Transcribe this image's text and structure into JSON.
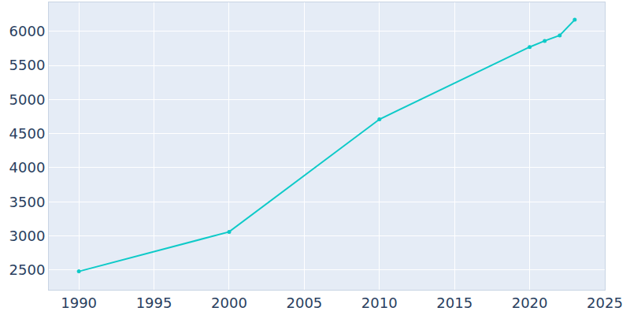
{
  "chart_data": {
    "type": "line",
    "x": [
      1990,
      2000,
      2010,
      2020,
      2021,
      2022,
      2023
    ],
    "values": [
      2480,
      3060,
      4710,
      5770,
      5860,
      5940,
      6170
    ],
    "color": "#0ecac8",
    "marker": "circle",
    "xlim": [
      1988,
      2025
    ],
    "xticks": [
      1990,
      1995,
      2000,
      2005,
      2010,
      2015,
      2020,
      2025
    ],
    "ylim": [
      2210,
      6425
    ],
    "yticks": [
      2500,
      3000,
      3500,
      4000,
      4500,
      5000,
      5500,
      6000
    ],
    "grid": true
  }
}
